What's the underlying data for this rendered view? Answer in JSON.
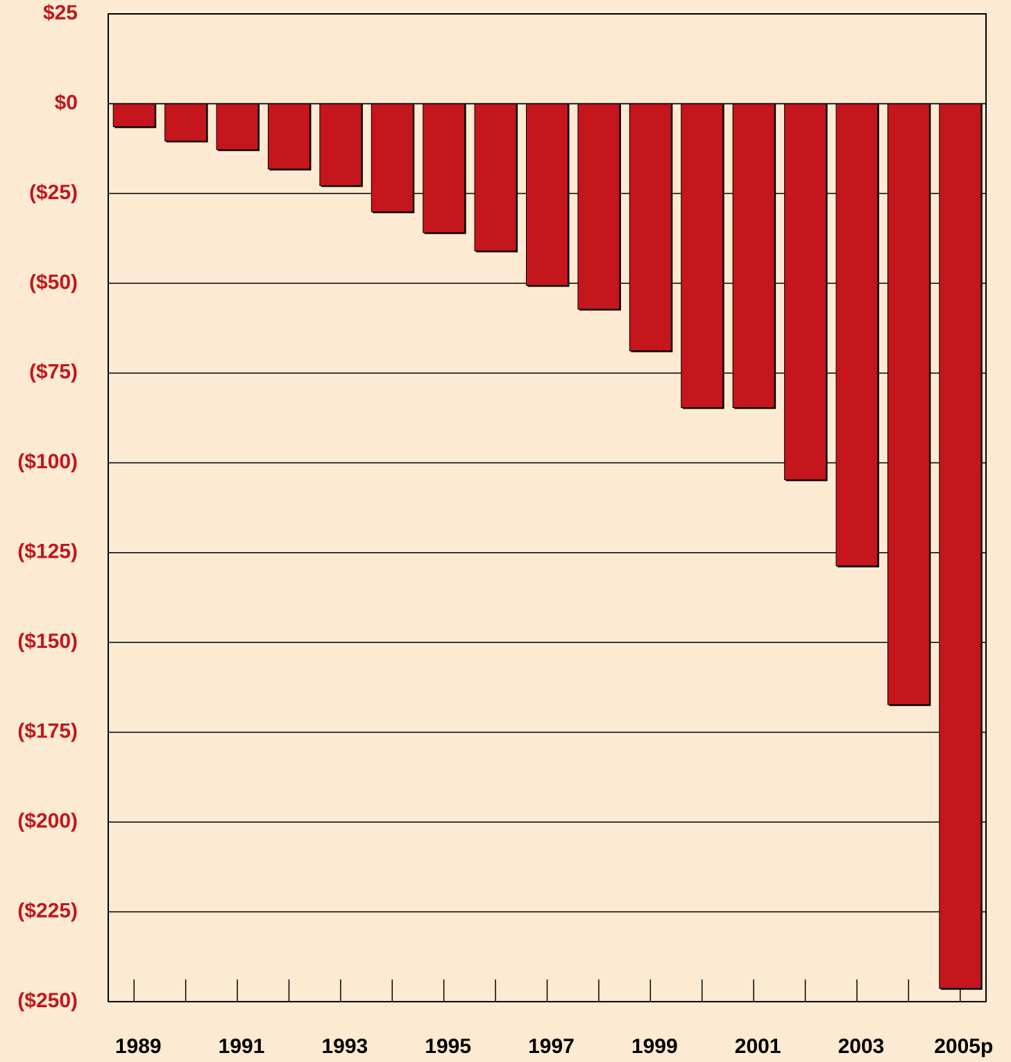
{
  "chart_data": {
    "type": "bar",
    "categories": [
      "1989",
      null,
      "1991",
      null,
      "1993",
      null,
      "1995",
      null,
      "1997",
      null,
      "1999",
      null,
      "2001",
      null,
      "2003",
      null,
      "2005p"
    ],
    "values": [
      -6.4,
      -10.4,
      -12.8,
      -18.2,
      -22.8,
      -30.1,
      -35.9,
      -41.0,
      -50.6,
      -57.2,
      -68.8,
      -84.6,
      -84.6,
      -104.7,
      -128.7,
      -167.3,
      -246.3
    ],
    "color": "#c4161c",
    "ylim": [
      -250,
      25
    ],
    "yticks": [
      {
        "value": 25,
        "label": "$25"
      },
      {
        "value": 0,
        "label": "$0"
      },
      {
        "value": -25,
        "label": "($25)"
      },
      {
        "value": -50,
        "label": "($50)"
      },
      {
        "value": -75,
        "label": "($75)"
      },
      {
        "value": -100,
        "label": "($100)"
      },
      {
        "value": -125,
        "label": "($125)"
      },
      {
        "value": -150,
        "label": "($150)"
      },
      {
        "value": -175,
        "label": "($175)"
      },
      {
        "value": -200,
        "label": "($200)"
      },
      {
        "value": -225,
        "label": "($225)"
      },
      {
        "value": -250,
        "label": "($250)"
      }
    ],
    "grid": true
  }
}
